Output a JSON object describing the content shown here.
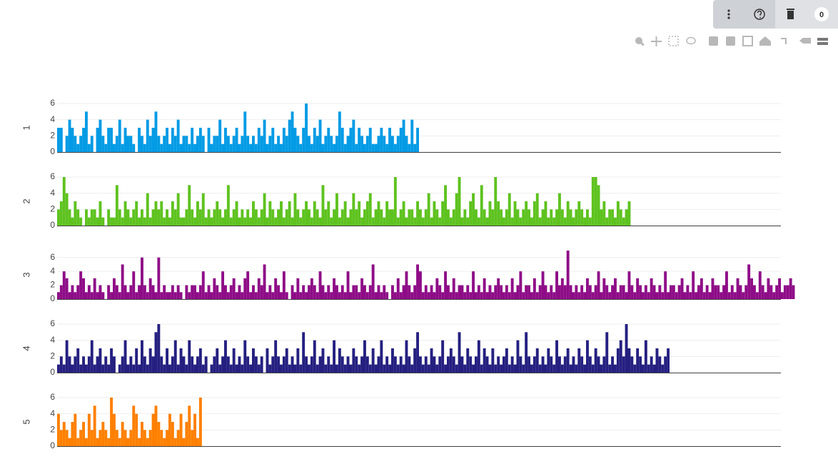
{
  "ui": {
    "badge_count": 0
  },
  "chart_data": [
    {
      "type": "bar",
      "ylabel": "1",
      "color": "#039be5",
      "ylim": [
        0,
        6
      ],
      "yticks": [
        0,
        2,
        4,
        6
      ],
      "grid": true,
      "values": [
        3,
        3,
        0,
        2,
        4,
        3,
        2,
        1,
        2,
        3,
        5,
        1,
        2,
        0,
        3,
        4,
        2,
        1,
        3,
        3,
        1,
        2,
        4,
        1,
        3,
        2,
        2,
        1,
        0,
        3,
        2,
        1,
        4,
        2,
        3,
        5,
        2,
        1,
        2,
        3,
        1,
        3,
        2,
        4,
        1,
        2,
        2,
        1,
        3,
        1,
        2,
        3,
        2,
        0,
        3,
        1,
        2,
        2,
        4,
        1,
        3,
        2,
        1,
        2,
        3,
        1,
        2,
        5,
        2,
        1,
        2,
        1,
        3,
        2,
        4,
        1,
        2,
        3,
        1,
        2,
        1,
        3,
        2,
        4,
        5,
        3,
        2,
        1,
        3,
        6,
        2,
        1,
        3,
        2,
        4,
        1,
        2,
        3,
        2,
        1,
        2,
        5,
        3,
        1,
        2,
        3,
        4,
        1,
        3,
        2,
        1,
        2,
        3,
        1,
        1,
        2,
        3,
        2,
        1,
        3,
        2,
        1,
        2,
        3,
        4,
        2,
        1,
        4,
        1,
        3
      ]
    },
    {
      "type": "bar",
      "ylabel": "2",
      "color": "#5ec21f",
      "ylim": [
        0,
        6
      ],
      "yticks": [
        0,
        2,
        4,
        6
      ],
      "grid": true,
      "values": [
        2,
        3,
        6,
        4,
        2,
        1,
        3,
        2,
        1,
        0,
        2,
        1,
        2,
        2,
        1,
        3,
        1,
        0,
        2,
        1,
        1,
        5,
        2,
        1,
        3,
        2,
        1,
        2,
        3,
        1,
        2,
        1,
        4,
        1,
        2,
        3,
        2,
        3,
        1,
        2,
        1,
        3,
        2,
        4,
        1,
        1,
        2,
        5,
        2,
        1,
        3,
        2,
        4,
        1,
        2,
        1,
        2,
        3,
        2,
        1,
        2,
        5,
        1,
        2,
        3,
        1,
        2,
        1,
        2,
        1,
        3,
        2,
        1,
        2,
        4,
        1,
        3,
        2,
        1,
        2,
        3,
        1,
        2,
        3,
        1,
        4,
        2,
        1,
        2,
        3,
        2,
        1,
        3,
        2,
        1,
        5,
        2,
        3,
        1,
        2,
        4,
        1,
        2,
        3,
        1,
        2,
        4,
        2,
        3,
        1,
        2,
        3,
        4,
        1,
        2,
        3,
        2,
        1,
        3,
        2,
        2,
        6,
        1,
        2,
        3,
        1,
        2,
        2,
        1,
        3,
        2,
        1,
        2,
        4,
        1,
        3,
        2,
        1,
        3,
        5,
        2,
        1,
        2,
        4,
        6,
        1,
        2,
        1,
        3,
        4,
        2,
        1,
        5,
        2,
        1,
        3,
        2,
        6,
        3,
        2,
        1,
        2,
        4,
        1,
        3,
        2,
        1,
        2,
        3,
        2,
        1,
        3,
        4,
        1,
        2,
        3,
        1,
        2,
        1,
        2,
        4,
        2,
        1,
        3,
        2,
        1,
        2,
        3,
        2,
        1,
        2,
        1,
        6,
        6,
        5,
        2,
        3,
        1,
        2,
        2,
        1,
        3,
        2,
        1,
        2,
        3
      ]
    },
    {
      "type": "bar",
      "ylabel": "3",
      "color": "#8e0c87",
      "ylim": [
        0,
        7
      ],
      "yticks": [
        0,
        2,
        4,
        6
      ],
      "grid": true,
      "values": [
        1,
        2,
        4,
        3,
        1,
        2,
        1,
        2,
        4,
        3,
        1,
        2,
        1,
        3,
        1,
        2,
        1,
        0,
        2,
        1,
        3,
        2,
        1,
        5,
        2,
        1,
        2,
        4,
        1,
        2,
        6,
        2,
        1,
        3,
        2,
        1,
        6,
        1,
        2,
        1,
        1,
        2,
        1,
        2,
        1,
        0,
        2,
        1,
        2,
        2,
        1,
        2,
        4,
        1,
        2,
        1,
        3,
        2,
        1,
        4,
        2,
        1,
        2,
        3,
        1,
        2,
        1,
        3,
        4,
        1,
        2,
        1,
        3,
        2,
        5,
        1,
        2,
        1,
        3,
        2,
        1,
        4,
        1,
        0,
        2,
        1,
        3,
        1,
        2,
        1,
        2,
        3,
        2,
        1,
        4,
        2,
        1,
        2,
        1,
        3,
        2,
        1,
        2,
        1,
        4,
        1,
        2,
        2,
        1,
        3,
        2,
        1,
        2,
        5,
        1,
        2,
        1,
        2,
        1,
        0,
        2,
        1,
        3,
        1,
        2,
        4,
        2,
        1,
        2,
        5,
        4,
        1,
        2,
        1,
        2,
        1,
        3,
        2,
        1,
        4,
        2,
        1,
        3,
        1,
        2,
        2,
        1,
        2,
        1,
        4,
        1,
        2,
        1,
        3,
        1,
        2,
        1,
        2,
        3,
        2,
        1,
        2,
        1,
        3,
        1,
        2,
        4,
        1,
        2,
        2,
        1,
        3,
        1,
        2,
        4,
        2,
        1,
        2,
        1,
        4,
        2,
        3,
        2,
        7,
        2,
        1,
        2,
        1,
        2,
        1,
        3,
        2,
        1,
        2,
        4,
        1,
        3,
        2,
        1,
        2,
        3,
        1,
        2,
        2,
        1,
        4,
        2,
        1,
        3,
        2,
        1,
        2,
        1,
        3,
        2,
        1,
        2,
        1,
        4,
        1,
        2,
        2,
        1,
        2,
        3,
        1,
        2,
        1,
        4,
        1,
        2,
        3,
        1,
        2,
        1,
        3,
        2,
        2,
        1,
        2,
        4,
        1,
        2,
        1,
        3,
        2,
        1,
        2,
        5,
        3,
        2,
        1,
        4,
        2,
        1,
        3,
        2,
        1,
        2,
        3,
        1,
        2,
        2,
        3,
        2
      ]
    },
    {
      "type": "bar",
      "ylabel": "4",
      "color": "#252080",
      "ylim": [
        0,
        6
      ],
      "yticks": [
        0,
        2,
        4,
        6
      ],
      "grid": true,
      "values": [
        1,
        2,
        1,
        4,
        2,
        1,
        2,
        3,
        1,
        2,
        1,
        2,
        4,
        1,
        2,
        3,
        1,
        2,
        1,
        3,
        2,
        0,
        1,
        2,
        4,
        1,
        2,
        1,
        3,
        1,
        4,
        2,
        1,
        3,
        2,
        5,
        6,
        2,
        1,
        3,
        1,
        2,
        4,
        1,
        3,
        2,
        1,
        4,
        2,
        1,
        2,
        3,
        1,
        2,
        0,
        1,
        2,
        3,
        1,
        2,
        4,
        2,
        1,
        3,
        1,
        2,
        1,
        4,
        2,
        1,
        3,
        2,
        1,
        2,
        0,
        3,
        1,
        2,
        4,
        2,
        1,
        2,
        3,
        1,
        2,
        1,
        3,
        1,
        5,
        2,
        1,
        2,
        4,
        1,
        2,
        3,
        1,
        2,
        1,
        4,
        1,
        3,
        2,
        1,
        2,
        1,
        3,
        2,
        1,
        2,
        4,
        2,
        1,
        3,
        1,
        2,
        4,
        1,
        2,
        1,
        3,
        2,
        1,
        2,
        1,
        4,
        2,
        1,
        3,
        5,
        2,
        1,
        2,
        1,
        3,
        2,
        1,
        2,
        4,
        1,
        2,
        3,
        2,
        1,
        5,
        2,
        1,
        3,
        2,
        1,
        2,
        4,
        1,
        3,
        2,
        1,
        3,
        1,
        2,
        1,
        2,
        3,
        1,
        2,
        1,
        4,
        2,
        1,
        5,
        2,
        1,
        2,
        3,
        1,
        2,
        1,
        3,
        2,
        1,
        4,
        2,
        1,
        2,
        3,
        1,
        2,
        1,
        3,
        2,
        1,
        4,
        2,
        1,
        3,
        2,
        1,
        2,
        5,
        1,
        2,
        1,
        3,
        4,
        2,
        6,
        3,
        2,
        1,
        3,
        2,
        1,
        4,
        1,
        2,
        1,
        3,
        2,
        1,
        2,
        3
      ]
    },
    {
      "type": "bar",
      "ylabel": "5",
      "color": "#ff8000",
      "ylim": [
        0,
        6
      ],
      "yticks": [
        0,
        2,
        4,
        6
      ],
      "grid": true,
      "values": [
        4,
        2,
        3,
        2,
        1,
        3,
        4,
        1,
        2,
        3,
        1,
        4,
        2,
        5,
        1,
        2,
        3,
        2,
        1,
        6,
        4,
        2,
        1,
        3,
        2,
        1,
        2,
        5,
        4,
        1,
        3,
        2,
        1,
        2,
        4,
        5,
        3,
        2,
        1,
        2,
        4,
        3,
        1,
        2,
        4,
        1,
        3,
        5,
        2,
        4,
        1,
        6
      ]
    }
  ]
}
